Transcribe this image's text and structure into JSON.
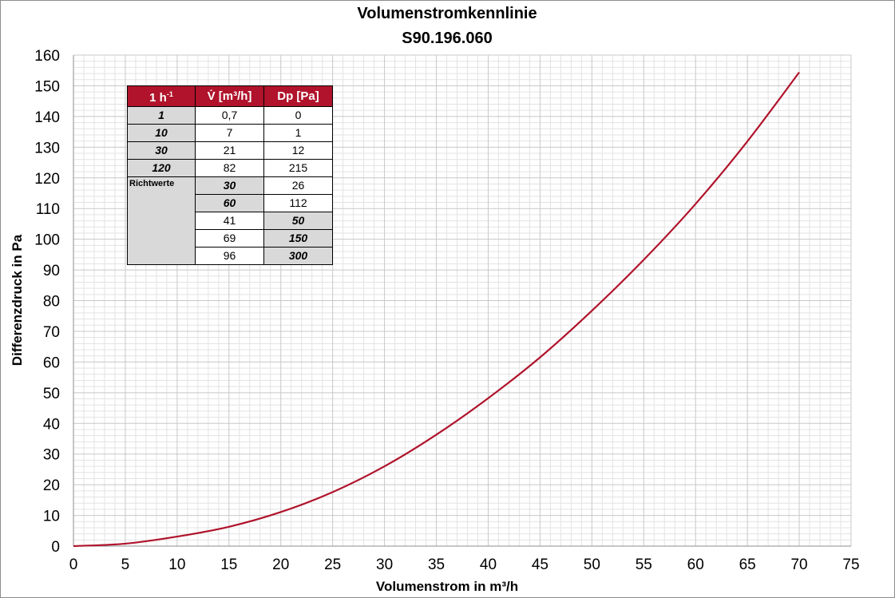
{
  "chart_data": {
    "type": "line",
    "title": "Volumenstromkennlinie",
    "subtitle": "S90.196.060",
    "xlabel": "Volumenstrom in m³/h",
    "ylabel": "Differenzdruck in Pa",
    "xlim": [
      0,
      75
    ],
    "ylim": [
      0,
      160
    ],
    "x_major": 5,
    "y_major": 10,
    "x_ticks": [
      "0",
      "5",
      "10",
      "15",
      "20",
      "25",
      "30",
      "35",
      "40",
      "45",
      "50",
      "55",
      "60",
      "65",
      "70",
      "75"
    ],
    "y_ticks": [
      "0",
      "10",
      "20",
      "30",
      "40",
      "50",
      "60",
      "70",
      "80",
      "90",
      "100",
      "110",
      "120",
      "130",
      "140",
      "150",
      "160"
    ],
    "grid": true,
    "line_color": "#b0132b",
    "series": [
      {
        "x": [
          0,
          5,
          10,
          15,
          20,
          25,
          30,
          35,
          40,
          45,
          50,
          55,
          60,
          65,
          70
        ],
        "y": [
          0,
          0.8,
          3.1,
          6.3,
          11.1,
          17.6,
          26.0,
          36.3,
          48.2,
          61.5,
          76.7,
          93.3,
          111.5,
          131.9,
          154.4
        ]
      }
    ]
  },
  "table": {
    "headers": [
      "1 h",
      "-1",
      "V̇ [m³/h]",
      "Dp [Pa]"
    ],
    "rows": [
      [
        "1",
        "0,7",
        "0"
      ],
      [
        "10",
        "7",
        "1"
      ],
      [
        "30",
        "21",
        "12"
      ],
      [
        "120",
        "82",
        "215"
      ]
    ],
    "richtwerte_label": "Richtwerte",
    "richtwerte_rows": [
      [
        "30",
        "26"
      ],
      [
        "60",
        "112"
      ],
      [
        "41",
        "50"
      ],
      [
        "69",
        "150"
      ],
      [
        "96",
        "300"
      ]
    ]
  }
}
